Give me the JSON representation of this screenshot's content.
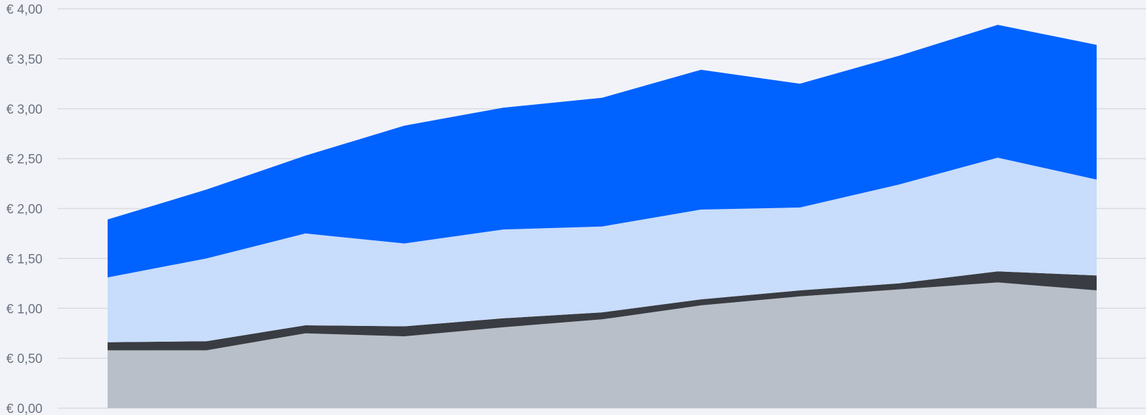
{
  "chart_data": {
    "type": "area",
    "stacked": true,
    "title": "",
    "xlabel": "",
    "ylabel": "",
    "x": [
      1,
      2,
      3,
      4,
      5,
      6,
      7,
      8,
      9,
      10,
      11
    ],
    "ylim": [
      0,
      4
    ],
    "yticks": [
      0,
      0.5,
      1.0,
      1.5,
      2.0,
      2.5,
      3.0,
      3.5,
      4.0
    ],
    "ytick_labels": [
      "€ 0,00",
      "€ 0,50",
      "€ 1,00",
      "€ 1,50",
      "€ 2,00",
      "€ 2,50",
      "€ 3,00",
      "€ 3,50",
      "€ 4,00"
    ],
    "grid": true,
    "legend": "none",
    "series": [
      {
        "color": "#b8bfc8",
        "values": [
          0.58,
          0.58,
          0.75,
          0.72,
          0.81,
          0.89,
          1.03,
          1.12,
          1.19,
          1.26,
          1.18
        ]
      },
      {
        "color": "#393c42",
        "values": [
          0.08,
          0.09,
          0.08,
          0.1,
          0.09,
          0.07,
          0.06,
          0.06,
          0.06,
          0.11,
          0.15
        ]
      },
      {
        "color": "#c8dcfb",
        "values": [
          0.65,
          0.83,
          0.92,
          0.83,
          0.89,
          0.86,
          0.9,
          0.83,
          0.99,
          1.14,
          0.96
        ]
      },
      {
        "color": "#0062ff",
        "values": [
          0.58,
          0.69,
          0.78,
          1.18,
          1.22,
          1.29,
          1.4,
          1.24,
          1.29,
          1.33,
          1.35
        ]
      }
    ]
  }
}
